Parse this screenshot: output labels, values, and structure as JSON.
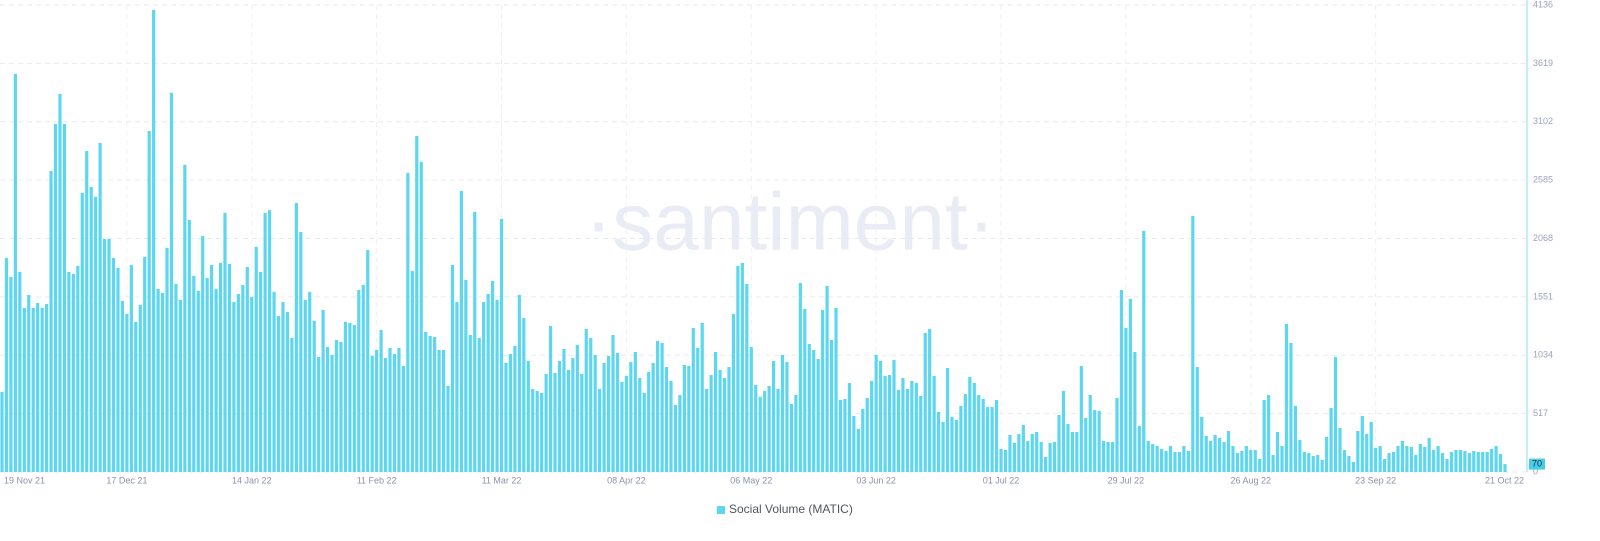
{
  "chart_data": {
    "type": "bar",
    "watermark": "·santiment·",
    "series": [
      {
        "name": "Social Volume (MATIC)",
        "color": "#5dd6ef",
        "axis": "y2",
        "values": [
          709,
          1896,
          1728,
          3526,
          1772,
          1453,
          1568,
          1453,
          1497,
          1453,
          1488,
          2667,
          3083,
          3349,
          3083,
          1772,
          1754,
          1825,
          2472,
          2844,
          2525,
          2437,
          2915,
          2064,
          2064,
          1896,
          1807,
          1515,
          1400,
          1834,
          1329,
          1480,
          1905,
          3021,
          4093,
          1621,
          1586,
          1985,
          3358,
          1666,
          1524,
          2720,
          2233,
          1737,
          1604,
          2091,
          1719,
          1834,
          1621,
          1852,
          2295,
          1843,
          1506,
          1577,
          1657,
          1816,
          1550,
          1994,
          1772,
          2295,
          2321,
          1595,
          1382,
          1506,
          1418,
          1187,
          2383,
          2126,
          1524,
          1595,
          1338,
          1019,
          1435,
          1107,
          1037,
          1169,
          1152,
          1329,
          1320,
          1302,
          1612,
          1657,
          1967,
          1028,
          1081,
          1258,
          1010,
          1099,
          1045,
          1099,
          939,
          2649,
          1781,
          2977,
          2747,
          1240,
          1205,
          1196,
          1081,
          1081,
          762,
          1834,
          1506,
          2490,
          1701,
          1214,
          2304,
          1187,
          1506,
          1577,
          1692,
          1524,
          2242,
          966,
          1045,
          1116,
          1568,
          1364,
          983,
          735,
          718,
          700,
          868,
          1294,
          877,
          983,
          1090,
          904,
          1010,
          1125,
          868,
          1267,
          1187,
          1037,
          735,
          966,
          1028,
          1214,
          1054,
          797,
          851,
          975,
          1063,
          833,
          700,
          886,
          966,
          1161,
          1143,
          930,
          806,
          594,
          682,
          948,
          939,
          1276,
          1099,
          1320,
          735,
          859,
          1063,
          904,
          833,
          930,
          1400,
          1825,
          1852,
          1666,
          1107,
          771,
          665,
          718,
          762,
          983,
          735,
          1037,
          975,
          602,
          682,
          1675,
          1444,
          1134,
          1081,
          1001,
          1435,
          1648,
          1169,
          1453,
          638,
          647,
          789,
          496,
          381,
          558,
          656,
          806,
          1037,
          983,
          851,
          859,
          992,
          727,
          833,
          735,
          806,
          789,
          673,
          1232,
          1267,
          851,
          532,
          443,
          921,
          487,
          461,
          585,
          691,
          842,
          789,
          682,
          647,
          576,
          576,
          638,
          204,
          195,
          328,
          257,
          337,
          416,
          275,
          337,
          354,
          266,
          133,
          257,
          266,
          505,
          718,
          425,
          354,
          354,
          939,
          478,
          682,
          549,
          540,
          275,
          266,
          266,
          656,
          1612,
          1276,
          1533,
          1063,
          408,
          2135,
          275,
          248,
          230,
          204,
          186,
          230,
          177,
          177,
          230,
          186,
          2268,
          930,
          487,
          319,
          275,
          328,
          301,
          266,
          363,
          230,
          168,
          186,
          230,
          195,
          195,
          115,
          638,
          682,
          151,
          354,
          230,
          1311,
          1143,
          585,
          284,
          177,
          168,
          142,
          151,
          106,
          310,
          567,
          1019,
          390,
          195,
          142,
          89,
          363,
          496,
          337,
          443,
          213,
          230,
          115,
          168,
          177,
          230,
          275,
          230,
          222,
          151,
          248,
          222,
          301,
          195,
          230,
          168,
          115,
          177,
          195,
          195,
          186,
          168,
          186,
          177,
          177,
          177,
          204,
          230,
          160,
          70
        ]
      }
    ],
    "categories": [
      "19 Nov 21",
      null,
      null,
      null,
      null,
      null,
      null,
      null,
      null,
      null,
      null,
      null,
      null,
      null,
      null,
      null,
      null,
      null,
      null,
      null,
      null,
      null,
      null,
      null,
      null,
      null,
      null,
      null,
      "17 Dec 21",
      null,
      null,
      null,
      null,
      null,
      null,
      null,
      null,
      null,
      null,
      null,
      null,
      null,
      null,
      null,
      null,
      null,
      null,
      null,
      null,
      null,
      null,
      null,
      null,
      null,
      null,
      null,
      "14 Jan 22",
      null,
      null,
      null,
      null,
      null,
      null,
      null,
      null,
      null,
      null,
      null,
      null,
      null,
      null,
      null,
      null,
      null,
      null,
      null,
      null,
      null,
      null,
      null,
      null,
      null,
      null,
      null,
      "11 Feb 22",
      null,
      null,
      null,
      null,
      null,
      null,
      null,
      null,
      null,
      null,
      null,
      null,
      null,
      null,
      null,
      null,
      null,
      null,
      null,
      null,
      null,
      null,
      null,
      null,
      null,
      null,
      null,
      "11 Mar 22",
      null,
      null,
      null,
      null,
      null,
      null,
      null,
      null,
      null,
      null,
      null,
      null,
      null,
      null,
      null,
      null,
      null,
      null,
      null,
      null,
      null,
      null,
      null,
      null,
      null,
      null,
      null,
      "08 Apr 22",
      null,
      null,
      null,
      null,
      null,
      null,
      null,
      null,
      null,
      null,
      null,
      null,
      null,
      null,
      null,
      null,
      null,
      null,
      null,
      null,
      null,
      null,
      null,
      null,
      null,
      null,
      null,
      "06 May 22",
      null,
      null,
      null,
      null,
      null,
      null,
      null,
      null,
      null,
      null,
      null,
      null,
      null,
      null,
      null,
      null,
      null,
      null,
      null,
      null,
      null,
      null,
      null,
      null,
      null,
      null,
      null,
      "03 Jun 22",
      null,
      null,
      null,
      null,
      null,
      null,
      null,
      null,
      null,
      null,
      null,
      null,
      null,
      null,
      null,
      null,
      null,
      null,
      null,
      null,
      null,
      null,
      null,
      null,
      null,
      null,
      null,
      "01 Jul 22",
      null,
      null,
      null,
      null,
      null,
      null,
      null,
      null,
      null,
      null,
      null,
      null,
      null,
      null,
      null,
      null,
      null,
      null,
      null,
      null,
      null,
      null,
      null,
      null,
      null,
      null,
      null,
      "29 Jul 22",
      null,
      null,
      null,
      null,
      null,
      null,
      null,
      null,
      null,
      null,
      null,
      null,
      null,
      null,
      null,
      null,
      null,
      null,
      null,
      null,
      null,
      null,
      null,
      null,
      null,
      null,
      null,
      "26 Aug 22",
      null,
      null,
      null,
      null,
      null,
      null,
      null,
      null,
      null,
      null,
      null,
      null,
      null,
      null,
      null,
      null,
      null,
      null,
      null,
      null,
      null,
      null,
      null,
      null,
      null,
      null,
      null,
      "23 Sep 22",
      null,
      null,
      null,
      null,
      null,
      null,
      null,
      null,
      null,
      null,
      null,
      null,
      null,
      null,
      null,
      null,
      null,
      null,
      null,
      null,
      null,
      null,
      null,
      null,
      null,
      null,
      null,
      "21 Oct 22",
      null
    ],
    "y2lim": [
      0,
      4136
    ],
    "y2ticks": [
      0,
      517,
      1034,
      1551,
      2068,
      2585,
      3102,
      3619,
      4136
    ],
    "grid": true,
    "legend": "bottom"
  }
}
